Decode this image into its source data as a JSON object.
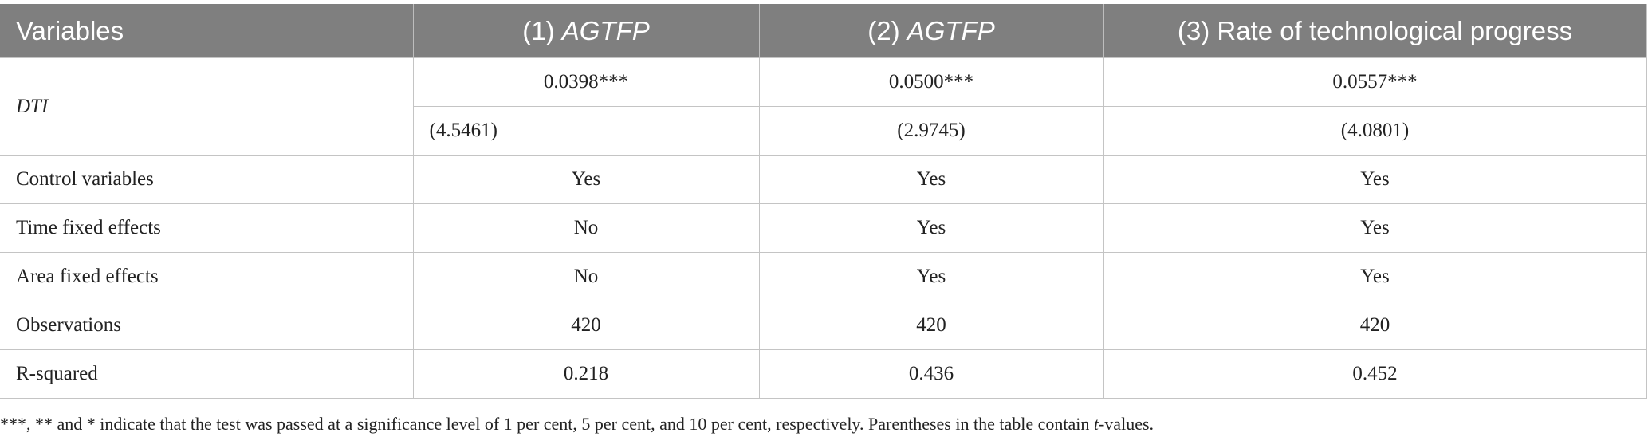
{
  "table": {
    "header": [
      "Variables",
      {
        "number": "(1)",
        "name": "AGTFP"
      },
      {
        "number": "(2)",
        "name": "AGTFP"
      },
      {
        "number": "(3)",
        "name": "Rate of technological progress"
      }
    ],
    "dti": {
      "label": "DTI",
      "coefficients": [
        "0.0398***",
        "0.0500***",
        "0.0557***"
      ],
      "t_values": [
        "(4.5461)",
        "(2.9745)",
        "(4.0801)"
      ]
    },
    "rows": [
      {
        "label": "Control variables",
        "values": [
          "Yes",
          "Yes",
          "Yes"
        ]
      },
      {
        "label": "Time fixed effects",
        "values": [
          "No",
          "Yes",
          "Yes"
        ]
      },
      {
        "label": "Area fixed effects",
        "values": [
          "No",
          "Yes",
          "Yes"
        ]
      },
      {
        "label": "Observations",
        "values": [
          "420",
          "420",
          "420"
        ]
      },
      {
        "label": "R-squared",
        "values": [
          "0.218",
          "0.436",
          "0.452"
        ]
      }
    ]
  },
  "footnote": {
    "before": "***, ** and * indicate that the test was passed at a significance level of 1 per cent, 5 per cent, and 10 per cent, respectively. Parentheses in the table contain",
    "italic": "t",
    "after": "-values."
  }
}
